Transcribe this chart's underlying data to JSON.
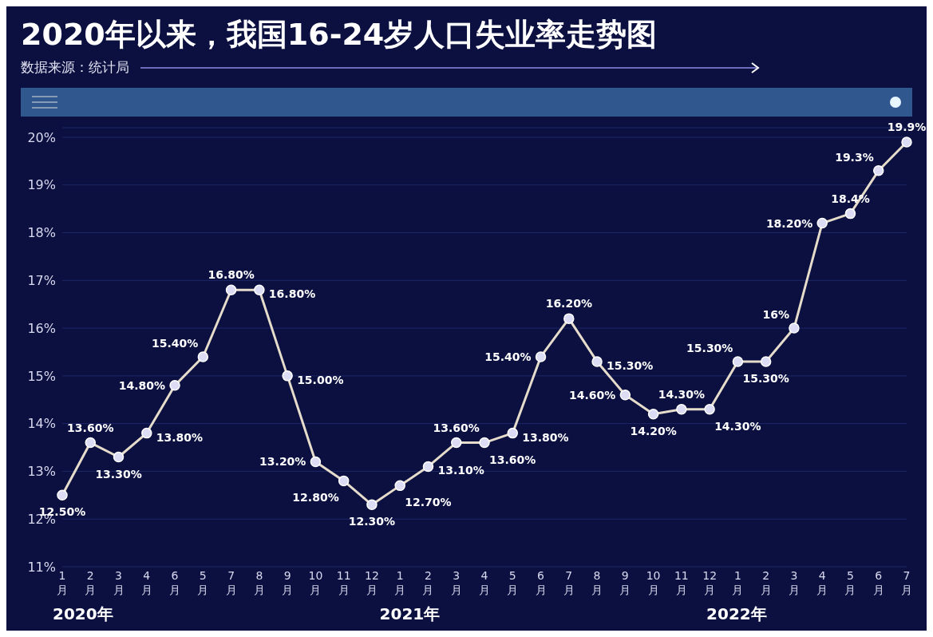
{
  "chart_data": {
    "type": "line",
    "title": "2020年以来，我国16-24岁人口失业率走势图",
    "annotations": [
      "数据来源：统计局",
      "2020年",
      "2021年",
      "2022年"
    ],
    "categories": [
      "1\n月",
      "2\n月",
      "3\n月",
      "4\n月",
      "6\n月",
      "5\n月",
      "7\n月",
      "8\n月",
      "9\n月",
      "10\n月",
      "11\n月",
      "12\n月",
      "1\n月",
      "2\n月",
      "3\n月",
      "4\n月",
      "5\n月",
      "6\n月",
      "7\n月",
      "8\n月",
      "9\n月",
      "10\n月",
      "11\n月",
      "12\n月",
      "1\n月",
      "2\n月",
      "3\n月",
      "4\n月",
      "5\n月",
      "6\n月",
      "7\n月"
    ],
    "series": [
      {
        "color": "#e6dccb",
        "values": [
          12.5,
          13.6,
          13.3,
          13.8,
          14.8,
          15.4,
          16.8,
          16.8,
          15.0,
          13.2,
          12.8,
          12.3,
          12.7,
          13.1,
          13.6,
          13.6,
          13.8,
          15.4,
          16.2,
          15.3,
          14.6,
          14.2,
          14.3,
          14.3,
          15.3,
          15.3,
          16,
          18.2,
          18.4,
          19.3,
          19.9
        ],
        "value_labels": [
          "12.50%",
          "13.60%",
          "13.30%",
          "13.80%",
          "14.80%",
          "15.40%",
          "16.80%",
          "16.80%",
          "15.00%",
          "13.20%",
          "12.80%",
          "12.30%",
          "12.70%",
          "13.10%",
          "13.60%",
          "13.60%",
          "13.80%",
          "15.40%",
          "16.20%",
          "15.30%",
          "14.60%",
          "14.20%",
          "14.30%",
          "14.30%",
          "15.30%",
          "15.30%",
          "16%",
          "18.20%",
          "18.4%",
          "19.3%",
          "19.9%"
        ]
      }
    ],
    "ylim": [
      11,
      20.2
    ],
    "yticks": [
      {
        "value": 11,
        "label": "11%"
      },
      {
        "value": 12,
        "label": "12%"
      },
      {
        "value": 13,
        "label": "13%"
      },
      {
        "value": 14,
        "label": "14%"
      },
      {
        "value": 15,
        "label": "15%"
      },
      {
        "value": 16,
        "label": "16%"
      },
      {
        "value": 17,
        "label": "17%"
      },
      {
        "value": 18,
        "label": "18%"
      },
      {
        "value": 19,
        "label": "19%"
      },
      {
        "value": 20,
        "label": "20%"
      }
    ],
    "grid": "y",
    "marker": "circle",
    "line_style": "solid",
    "data_labels": true
  }
}
